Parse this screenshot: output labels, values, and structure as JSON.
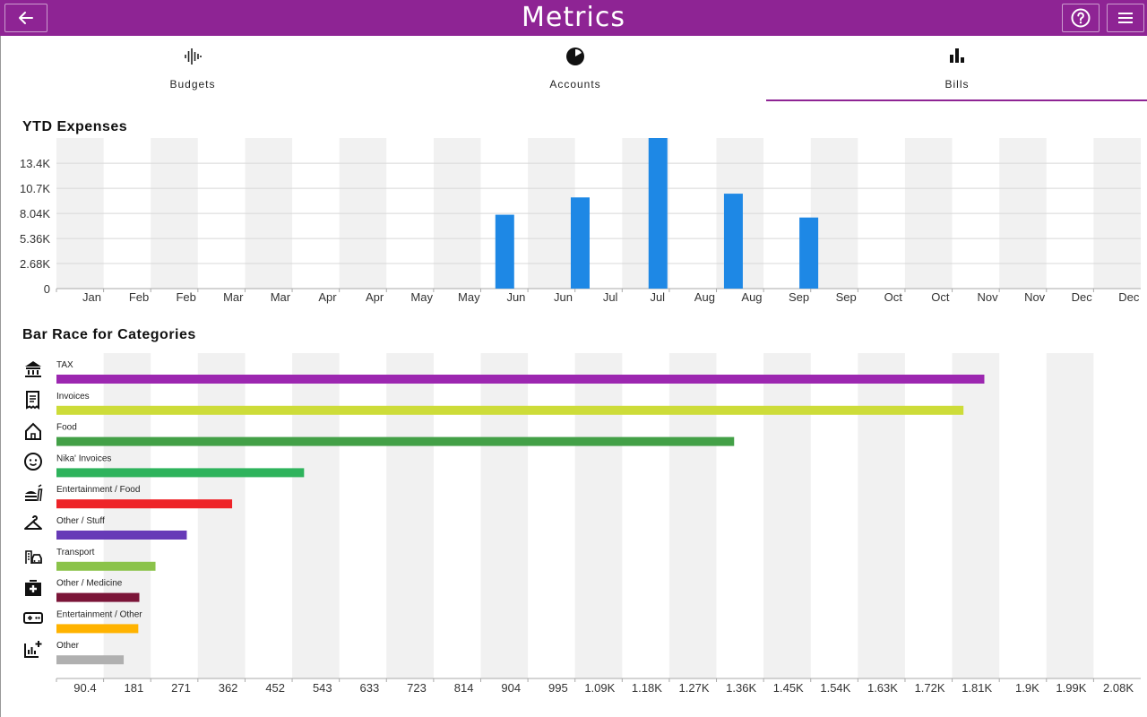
{
  "header": {
    "title": "Metrics",
    "back_icon": "arrow-left-icon",
    "help_icon": "help-circle-icon",
    "menu_icon": "menu-icon",
    "color": "#8e2494"
  },
  "tabs": [
    {
      "label": "Budgets",
      "icon": "waveform-icon"
    },
    {
      "label": "Accounts",
      "icon": "pie-chart-icon"
    },
    {
      "label": "Bills",
      "icon": "bar-chart-icon",
      "selected": true
    }
  ],
  "ytd": {
    "title": "YTD Expenses",
    "bar_color": "#1e88e5"
  },
  "race": {
    "title": "Bar Race for Categories",
    "categories": [
      {
        "label": "TAX",
        "icon": "bank-icon",
        "color": "#9c27b0"
      },
      {
        "label": "Invoices",
        "icon": "receipt-icon",
        "color": "#cddc39"
      },
      {
        "label": "Food",
        "icon": "house-icon",
        "color": "#43a047"
      },
      {
        "label": "Nika' Invoices",
        "icon": "baby-face-icon",
        "color": "#2eb35c"
      },
      {
        "label": "Entertainment  / Food",
        "icon": "fastfood-icon",
        "color": "#ee2428"
      },
      {
        "label": "Other / Stuff",
        "icon": "hanger-icon",
        "color": "#673ab7"
      },
      {
        "label": "Transport",
        "icon": "taxi-icon",
        "color": "#8bc34a"
      },
      {
        "label": "Other / Medicine",
        "icon": "medical-bag-icon",
        "color": "#7b1538"
      },
      {
        "label": "Entertainment  / Other",
        "icon": "gamepad-icon",
        "color": "#ffb300"
      },
      {
        "label": "Other",
        "icon": "chart-add-icon",
        "color": "#b0b0b0"
      }
    ]
  },
  "chart_data": [
    {
      "type": "bar",
      "title": "YTD Expenses",
      "categories": [
        "Jan",
        "Feb",
        "Feb",
        "Mar",
        "Mar",
        "Apr",
        "Apr",
        "May",
        "May",
        "Jun",
        "Jun",
        "Jul",
        "Jul",
        "Aug",
        "Aug",
        "Sep",
        "Sep",
        "Oct",
        "Oct",
        "Nov",
        "Nov",
        "Dec",
        "Dec"
      ],
      "y_tick_labels": [
        "0",
        "2.68K",
        "5.36K",
        "8.04K",
        "10.7K",
        "13.4K"
      ],
      "ylim": [
        0,
        16100
      ],
      "bars": [
        {
          "x_position": 9.5,
          "value": 7900
        },
        {
          "x_position": 11.1,
          "value": 9750
        },
        {
          "x_position": 12.75,
          "value": 16100
        },
        {
          "x_position": 14.35,
          "value": 10150
        },
        {
          "x_position": 15.95,
          "value": 7600
        }
      ]
    },
    {
      "type": "bar",
      "orientation": "horizontal",
      "title": "Bar Race for Categories",
      "categories": [
        "TAX",
        "Invoices",
        "Food",
        "Nika' Invoices",
        "Entertainment  / Food",
        "Other / Stuff",
        "Transport",
        "Other / Medicine",
        "Entertainment  / Other",
        "Other"
      ],
      "values": [
        1780,
        1740,
        1300,
        475,
        337,
        250,
        190,
        159,
        157,
        129
      ],
      "x_tick_labels": [
        "90.4",
        "181",
        "271",
        "362",
        "452",
        "543",
        "633",
        "723",
        "814",
        "904",
        "995",
        "1.09K",
        "1.18K",
        "1.27K",
        "1.36K",
        "1.45K",
        "1.54K",
        "1.63K",
        "1.72K",
        "1.81K",
        "1.9K",
        "1.99K",
        "2.08K"
      ],
      "xlim": [
        0,
        2080
      ]
    }
  ]
}
